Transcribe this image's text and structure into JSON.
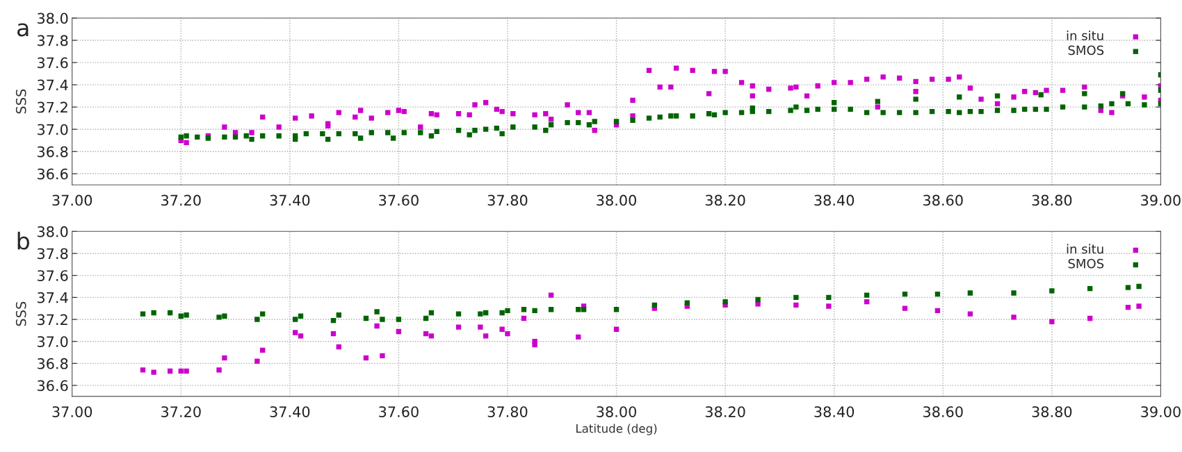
{
  "chart_data": [
    {
      "type": "scatter",
      "title": "a",
      "ylabel": "SSS",
      "xlim": [
        37.0,
        39.0
      ],
      "ylim": [
        36.5,
        38.0
      ],
      "xticks": [
        {
          "value": 37.0,
          "label": "37.00"
        },
        {
          "value": 37.2,
          "label": "37.20"
        },
        {
          "value": 37.4,
          "label": "37.40"
        },
        {
          "value": 37.6,
          "label": "37.60"
        },
        {
          "value": 37.8,
          "label": "37.80"
        },
        {
          "value": 38.0,
          "label": "38.00"
        },
        {
          "value": 38.2,
          "label": "38.20"
        },
        {
          "value": 38.4,
          "label": "38.40"
        },
        {
          "value": 38.6,
          "label": "38.60"
        },
        {
          "value": 38.8,
          "label": "38.80"
        },
        {
          "value": 39.0,
          "label": "39.00"
        }
      ],
      "yticks": [
        {
          "value": 36.6,
          "label": "36.6"
        },
        {
          "value": 36.8,
          "label": "36.8"
        },
        {
          "value": 37.0,
          "label": "37.0"
        },
        {
          "value": 37.2,
          "label": "37.2"
        },
        {
          "value": 37.4,
          "label": "37.4"
        },
        {
          "value": 37.6,
          "label": "37.6"
        },
        {
          "value": 37.8,
          "label": "37.8"
        },
        {
          "value": 38.0,
          "label": "38.0"
        }
      ],
      "grid": true,
      "legend": "top right",
      "marker": "square",
      "series": [
        {
          "name": "in situ",
          "color": "#cc00cc",
          "x": [
            37.2,
            37.21,
            37.25,
            37.28,
            37.3,
            37.33,
            37.35,
            37.38,
            37.41,
            37.44,
            37.47,
            37.47,
            37.49,
            37.52,
            37.53,
            37.55,
            37.58,
            37.6,
            37.61,
            37.64,
            37.66,
            37.67,
            37.71,
            37.73,
            37.74,
            37.76,
            37.78,
            37.79,
            37.81,
            37.85,
            37.87,
            37.88,
            37.91,
            37.93,
            37.95,
            37.96,
            38.0,
            38.03,
            38.03,
            38.06,
            38.08,
            38.1,
            38.11,
            38.14,
            38.17,
            38.18,
            38.2,
            38.23,
            38.25,
            38.25,
            38.28,
            38.32,
            38.33,
            38.35,
            38.37,
            38.4,
            38.43,
            38.46,
            38.48,
            38.49,
            38.52,
            38.55,
            38.55,
            38.58,
            38.61,
            38.63,
            38.65,
            38.67,
            38.7,
            38.73,
            38.75,
            38.77,
            38.79,
            38.82,
            38.86,
            38.89,
            38.91,
            38.93,
            38.97,
            39.0,
            39.0
          ],
          "values": [
            36.9,
            36.88,
            36.94,
            37.02,
            36.97,
            36.97,
            37.11,
            37.02,
            37.1,
            37.12,
            37.03,
            37.05,
            37.15,
            37.11,
            37.17,
            37.1,
            37.15,
            37.17,
            37.16,
            37.02,
            37.14,
            37.13,
            37.14,
            37.13,
            37.22,
            37.24,
            37.18,
            37.16,
            37.14,
            37.13,
            37.14,
            37.09,
            37.22,
            37.15,
            37.15,
            36.99,
            37.04,
            37.12,
            37.26,
            37.53,
            37.38,
            37.38,
            37.55,
            37.53,
            37.32,
            37.52,
            37.52,
            37.42,
            37.39,
            37.3,
            37.36,
            37.37,
            37.38,
            37.3,
            37.39,
            37.42,
            37.42,
            37.45,
            37.2,
            37.47,
            37.46,
            37.43,
            37.34,
            37.45,
            37.45,
            37.47,
            37.37,
            37.27,
            37.23,
            37.29,
            37.34,
            37.33,
            37.35,
            37.35,
            37.38,
            37.17,
            37.15,
            37.3,
            37.29,
            37.39,
            37.26
          ]
        },
        {
          "name": "SMOS",
          "color": "#006400",
          "x": [
            37.2,
            37.21,
            37.23,
            37.25,
            37.28,
            37.3,
            37.32,
            37.33,
            37.35,
            37.38,
            37.41,
            37.41,
            37.43,
            37.46,
            37.47,
            37.49,
            37.52,
            37.53,
            37.55,
            37.58,
            37.59,
            37.61,
            37.64,
            37.66,
            37.67,
            37.71,
            37.73,
            37.74,
            37.76,
            37.78,
            37.79,
            37.81,
            37.85,
            37.87,
            37.88,
            37.91,
            37.93,
            37.95,
            37.96,
            38.0,
            38.03,
            38.06,
            38.08,
            38.1,
            38.11,
            38.14,
            38.17,
            38.18,
            38.2,
            38.23,
            38.25,
            38.25,
            38.28,
            38.32,
            38.33,
            38.35,
            38.37,
            38.4,
            38.4,
            38.43,
            38.46,
            38.48,
            38.49,
            38.52,
            38.55,
            38.55,
            38.58,
            38.61,
            38.63,
            38.63,
            38.65,
            38.67,
            38.7,
            38.7,
            38.73,
            38.75,
            38.77,
            38.78,
            38.79,
            38.82,
            38.86,
            38.86,
            38.89,
            38.91,
            38.93,
            38.94,
            38.97,
            39.0,
            39.0,
            39.0
          ],
          "values": [
            36.93,
            36.94,
            36.93,
            36.92,
            36.93,
            36.93,
            36.94,
            36.91,
            36.94,
            36.94,
            36.94,
            36.91,
            36.96,
            36.96,
            36.91,
            36.96,
            36.96,
            36.92,
            36.97,
            36.97,
            36.92,
            36.97,
            36.97,
            36.94,
            36.98,
            36.99,
            36.95,
            36.99,
            37.0,
            37.01,
            36.96,
            37.02,
            37.02,
            36.99,
            37.04,
            37.06,
            37.06,
            37.04,
            37.07,
            37.07,
            37.08,
            37.1,
            37.11,
            37.12,
            37.12,
            37.12,
            37.14,
            37.13,
            37.15,
            37.15,
            37.16,
            37.19,
            37.16,
            37.17,
            37.2,
            37.17,
            37.18,
            37.24,
            37.18,
            37.18,
            37.15,
            37.25,
            37.15,
            37.15,
            37.15,
            37.27,
            37.16,
            37.16,
            37.29,
            37.15,
            37.16,
            37.16,
            37.17,
            37.3,
            37.17,
            37.18,
            37.18,
            37.31,
            37.18,
            37.2,
            37.2,
            37.32,
            37.21,
            37.23,
            37.32,
            37.23,
            37.22,
            37.49,
            37.35,
            37.23
          ]
        }
      ]
    },
    {
      "type": "scatter",
      "title": "b",
      "ylabel": "SSS",
      "xlabel": "Latitude (deg)",
      "xlim": [
        37.0,
        39.0
      ],
      "ylim": [
        36.5,
        38.0
      ],
      "xticks": [
        {
          "value": 37.0,
          "label": "37.00"
        },
        {
          "value": 37.2,
          "label": "37.20"
        },
        {
          "value": 37.4,
          "label": "37.40"
        },
        {
          "value": 37.6,
          "label": "37.60"
        },
        {
          "value": 37.8,
          "label": "37.80"
        },
        {
          "value": 38.0,
          "label": "38.00"
        },
        {
          "value": 38.2,
          "label": "38.20"
        },
        {
          "value": 38.4,
          "label": "38.40"
        },
        {
          "value": 38.6,
          "label": "38.60"
        },
        {
          "value": 38.8,
          "label": "38.80"
        },
        {
          "value": 39.0,
          "label": "39.00"
        }
      ],
      "yticks": [
        {
          "value": 36.6,
          "label": "36.6"
        },
        {
          "value": 36.8,
          "label": "36.8"
        },
        {
          "value": 37.0,
          "label": "37.0"
        },
        {
          "value": 37.2,
          "label": "37.2"
        },
        {
          "value": 37.4,
          "label": "37.4"
        },
        {
          "value": 37.6,
          "label": "37.6"
        },
        {
          "value": 37.8,
          "label": "37.8"
        },
        {
          "value": 38.0,
          "label": "38.0"
        }
      ],
      "grid": true,
      "legend": "top right",
      "marker": "square",
      "series": [
        {
          "name": "in situ",
          "color": "#cc00cc",
          "x": [
            37.13,
            37.15,
            37.18,
            37.2,
            37.21,
            37.27,
            37.28,
            37.34,
            37.35,
            37.41,
            37.42,
            37.48,
            37.49,
            37.54,
            37.56,
            37.57,
            37.6,
            37.65,
            37.66,
            37.71,
            37.75,
            37.76,
            37.79,
            37.8,
            37.83,
            37.85,
            37.85,
            37.88,
            37.93,
            37.94,
            38.0,
            38.07,
            38.13,
            38.2,
            38.26,
            38.33,
            38.39,
            38.46,
            38.53,
            38.59,
            38.65,
            38.73,
            38.8,
            38.87,
            38.94,
            38.96
          ],
          "values": [
            36.74,
            36.72,
            36.73,
            36.73,
            36.73,
            36.74,
            36.85,
            36.82,
            36.92,
            37.08,
            37.05,
            37.07,
            36.95,
            36.85,
            37.14,
            36.87,
            37.09,
            37.07,
            37.05,
            37.13,
            37.13,
            37.05,
            37.11,
            37.07,
            37.21,
            37.0,
            36.97,
            37.42,
            37.04,
            37.32,
            37.11,
            37.3,
            37.32,
            37.33,
            37.34,
            37.33,
            37.32,
            37.36,
            37.3,
            37.28,
            37.25,
            37.22,
            37.18,
            37.21,
            37.31,
            37.32
          ]
        },
        {
          "name": "SMOS",
          "color": "#006400",
          "x": [
            37.13,
            37.15,
            37.18,
            37.2,
            37.21,
            37.27,
            37.28,
            37.34,
            37.35,
            37.41,
            37.42,
            37.48,
            37.49,
            37.54,
            37.56,
            37.57,
            37.6,
            37.65,
            37.66,
            37.71,
            37.75,
            37.76,
            37.79,
            37.8,
            37.83,
            37.85,
            37.88,
            37.93,
            37.94,
            38.0,
            38.07,
            38.13,
            38.2,
            38.26,
            38.33,
            38.39,
            38.46,
            38.53,
            38.59,
            38.65,
            38.73,
            38.8,
            38.87,
            38.94,
            38.96
          ],
          "values": [
            37.25,
            37.26,
            37.26,
            37.23,
            37.24,
            37.22,
            37.23,
            37.2,
            37.25,
            37.2,
            37.23,
            37.19,
            37.24,
            37.21,
            37.27,
            37.2,
            37.2,
            37.21,
            37.26,
            37.25,
            37.25,
            37.26,
            37.26,
            37.28,
            37.29,
            37.28,
            37.29,
            37.29,
            37.29,
            37.29,
            37.33,
            37.35,
            37.36,
            37.38,
            37.4,
            37.4,
            37.42,
            37.43,
            37.43,
            37.44,
            37.44,
            37.46,
            37.48,
            37.49,
            37.5
          ]
        }
      ]
    }
  ]
}
